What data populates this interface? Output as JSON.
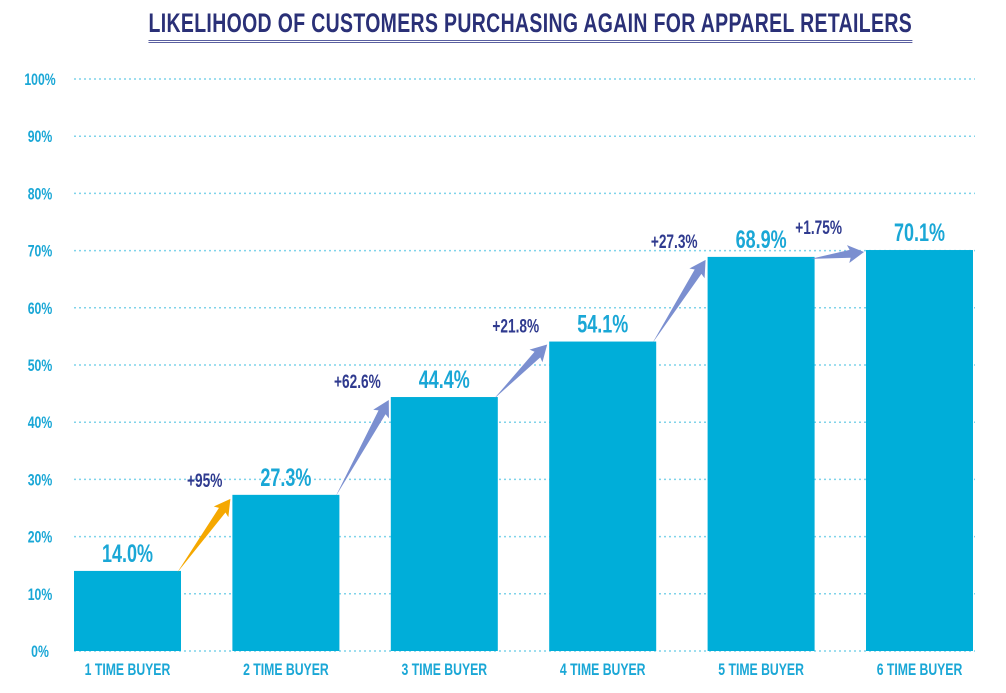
{
  "chart_data": {
    "type": "bar",
    "title": "LIKELIHOOD OF CUSTOMERS PURCHASING AGAIN FOR APPAREL RETAILERS",
    "xlabel": "",
    "ylabel": "",
    "categories": [
      "1 TIME BUYER",
      "2 TIME BUYER",
      "3 TIME BUYER",
      "4 TIME BUYER",
      "5 TIME BUYER",
      "6 TIME BUYER"
    ],
    "values": [
      14.0,
      27.3,
      44.4,
      54.1,
      68.9,
      70.1
    ],
    "value_labels": [
      "14.0%",
      "27.3%",
      "44.4%",
      "54.1%",
      "68.9%",
      "70.1%"
    ],
    "ylim": [
      0,
      100
    ],
    "yticks": [
      0,
      10,
      20,
      30,
      40,
      50,
      60,
      70,
      80,
      90,
      100
    ],
    "ytick_labels": [
      "0%",
      "10%",
      "20%",
      "30%",
      "40%",
      "50%",
      "60%",
      "70%",
      "80%",
      "90%",
      "100%"
    ],
    "grid": true,
    "annotations": [
      {
        "text": "+95%",
        "from": 0,
        "to": 1,
        "color": "#f5a800"
      },
      {
        "text": "+62.6%",
        "from": 1,
        "to": 2,
        "color": "#7b8fd0"
      },
      {
        "text": "+21.8%",
        "from": 2,
        "to": 3,
        "color": "#7b8fd0"
      },
      {
        "text": "+27.3%",
        "from": 3,
        "to": 4,
        "color": "#7b8fd0"
      },
      {
        "text": "+1.75%",
        "from": 4,
        "to": 5,
        "color": "#7b8fd0"
      }
    ],
    "colors": {
      "bar": "#00aed9",
      "title": "#2a3077",
      "axis_text": "#1aa7d6",
      "annotation_text": "#2f3a8f",
      "grid": "#7fd3ea"
    }
  }
}
